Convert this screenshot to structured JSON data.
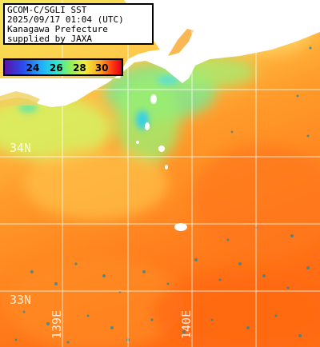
{
  "header": {
    "line1": "GCOM-C/SGLI SST",
    "line2": "2025/09/17 01:04 (UTC)",
    "line3": "Kanagawa Prefecture",
    "line4": "supplied by JAXA"
  },
  "colorbar": {
    "ticks": [
      "24",
      "26",
      "28",
      "30"
    ],
    "tick_positions": [
      0.24,
      0.44,
      0.64,
      0.83
    ],
    "colors": [
      "#5a12a8",
      "#2a4df0",
      "#1ea8ff",
      "#28e6d2",
      "#8cf05a",
      "#f0f03c",
      "#ffa020",
      "#ff3a10",
      "#e0001c"
    ]
  },
  "grid_labels": {
    "lat_34": "34N",
    "lat_33": "33N",
    "lon_139": "139E",
    "lon_140": "140E"
  },
  "colors": {
    "land": "#ffffff",
    "grid": "#ffffff",
    "sea_warm": "#ff7a18",
    "sea_mid": "#ffb040",
    "sea_cool": "#a8ec70",
    "sea_cold": "#38d8e0"
  }
}
